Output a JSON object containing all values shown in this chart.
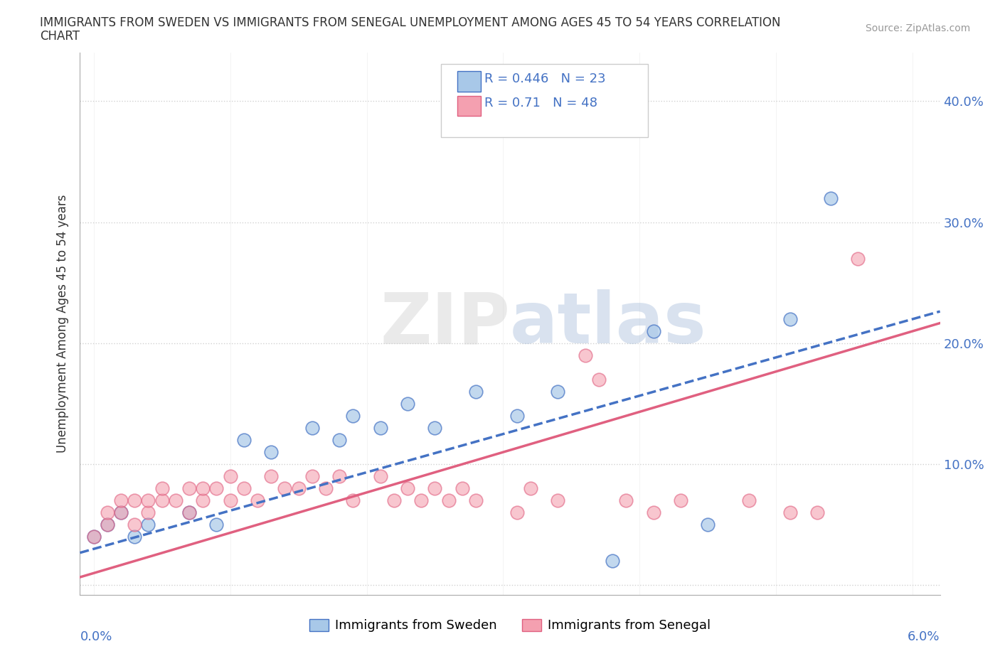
{
  "title_line1": "IMMIGRANTS FROM SWEDEN VS IMMIGRANTS FROM SENEGAL UNEMPLOYMENT AMONG AGES 45 TO 54 YEARS CORRELATION",
  "title_line2": "CHART",
  "source": "Source: ZipAtlas.com",
  "ylabel": "Unemployment Among Ages 45 to 54 years",
  "xlim": [
    -0.001,
    0.062
  ],
  "ylim": [
    -0.008,
    0.44
  ],
  "xticks": [
    0.0,
    0.01,
    0.02,
    0.03,
    0.04,
    0.05,
    0.06
  ],
  "xticklabels": [
    "0.0%",
    "",
    "",
    "",
    "",
    "",
    "6.0%"
  ],
  "yticks": [
    0.0,
    0.1,
    0.2,
    0.3,
    0.4
  ],
  "yticklabels": [
    "",
    "10.0%",
    "20.0%",
    "30.0%",
    "40.0%"
  ],
  "sweden_R": 0.446,
  "sweden_N": 23,
  "senegal_R": 0.71,
  "senegal_N": 48,
  "sweden_color": "#a8c8e8",
  "senegal_color": "#f4a0b0",
  "sweden_line_color": "#4472c4",
  "senegal_line_color": "#e06080",
  "legend_color": "#4472c4",
  "legend_sweden": "Immigrants from Sweden",
  "legend_senegal": "Immigrants from Senegal",
  "sweden_x": [
    0.0,
    0.001,
    0.002,
    0.003,
    0.004,
    0.007,
    0.009,
    0.011,
    0.013,
    0.016,
    0.018,
    0.019,
    0.021,
    0.023,
    0.025,
    0.028,
    0.031,
    0.034,
    0.038,
    0.041,
    0.045,
    0.051,
    0.054
  ],
  "sweden_y": [
    0.04,
    0.05,
    0.06,
    0.04,
    0.05,
    0.06,
    0.05,
    0.12,
    0.11,
    0.13,
    0.12,
    0.14,
    0.13,
    0.15,
    0.13,
    0.16,
    0.14,
    0.16,
    0.02,
    0.21,
    0.05,
    0.22,
    0.32
  ],
  "senegal_x": [
    0.0,
    0.001,
    0.001,
    0.002,
    0.002,
    0.003,
    0.003,
    0.004,
    0.004,
    0.005,
    0.005,
    0.006,
    0.007,
    0.007,
    0.008,
    0.008,
    0.009,
    0.01,
    0.01,
    0.011,
    0.012,
    0.013,
    0.014,
    0.015,
    0.016,
    0.017,
    0.018,
    0.019,
    0.021,
    0.022,
    0.023,
    0.024,
    0.025,
    0.026,
    0.027,
    0.028,
    0.031,
    0.032,
    0.034,
    0.036,
    0.037,
    0.039,
    0.041,
    0.043,
    0.048,
    0.051,
    0.053,
    0.056
  ],
  "senegal_y": [
    0.04,
    0.05,
    0.06,
    0.06,
    0.07,
    0.05,
    0.07,
    0.06,
    0.07,
    0.07,
    0.08,
    0.07,
    0.06,
    0.08,
    0.07,
    0.08,
    0.08,
    0.07,
    0.09,
    0.08,
    0.07,
    0.09,
    0.08,
    0.08,
    0.09,
    0.08,
    0.09,
    0.07,
    0.09,
    0.07,
    0.08,
    0.07,
    0.08,
    0.07,
    0.08,
    0.07,
    0.06,
    0.08,
    0.07,
    0.19,
    0.17,
    0.07,
    0.06,
    0.07,
    0.07,
    0.06,
    0.06,
    0.27
  ]
}
